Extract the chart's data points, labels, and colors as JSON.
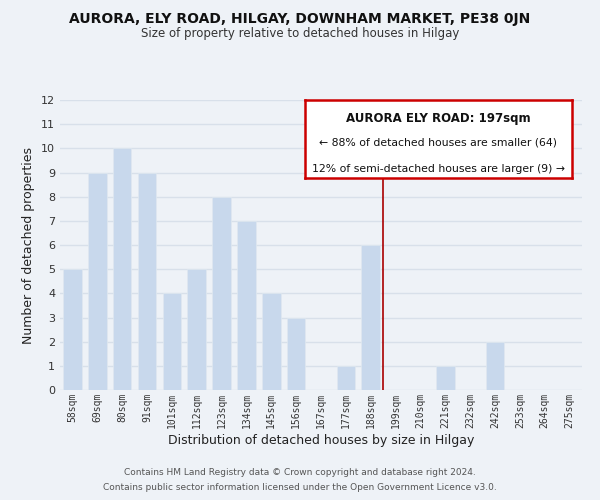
{
  "title": "AURORA, ELY ROAD, HILGAY, DOWNHAM MARKET, PE38 0JN",
  "subtitle": "Size of property relative to detached houses in Hilgay",
  "xlabel": "Distribution of detached houses by size in Hilgay",
  "ylabel": "Number of detached properties",
  "bar_color": "#c8d8ec",
  "bar_edge_color": "#e0e8f0",
  "background_color": "#eef2f7",
  "grid_color": "#d8e0ea",
  "bins": [
    "58sqm",
    "69sqm",
    "80sqm",
    "91sqm",
    "101sqm",
    "112sqm",
    "123sqm",
    "134sqm",
    "145sqm",
    "156sqm",
    "167sqm",
    "177sqm",
    "188sqm",
    "199sqm",
    "210sqm",
    "221sqm",
    "232sqm",
    "242sqm",
    "253sqm",
    "264sqm",
    "275sqm"
  ],
  "values": [
    5,
    9,
    10,
    9,
    4,
    5,
    8,
    7,
    4,
    3,
    0,
    1,
    6,
    0,
    0,
    1,
    0,
    2,
    0,
    0,
    0
  ],
  "ylim": [
    0,
    12
  ],
  "yticks": [
    0,
    1,
    2,
    3,
    4,
    5,
    6,
    7,
    8,
    9,
    10,
    11,
    12
  ],
  "vline_x_index": 13,
  "vline_color": "#aa0000",
  "legend_title": "AURORA ELY ROAD: 197sqm",
  "legend_line1": "← 88% of detached houses are smaller (64)",
  "legend_line2": "12% of semi-detached houses are larger (9) →",
  "legend_box_color": "#ffffff",
  "legend_border_color": "#cc0000",
  "footer1": "Contains HM Land Registry data © Crown copyright and database right 2024.",
  "footer2": "Contains public sector information licensed under the Open Government Licence v3.0."
}
